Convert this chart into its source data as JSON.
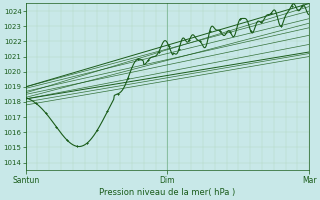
{
  "title": "",
  "xlabel": "Pression niveau de la mer( hPa )",
  "bg_color": "#c8e8e8",
  "grid_minor_color": "#b0d8c0",
  "grid_major_color": "#80b898",
  "line_color": "#1a5c1a",
  "ylim": [
    1013.5,
    1024.5
  ],
  "yticks": [
    1014,
    1015,
    1016,
    1017,
    1018,
    1019,
    1020,
    1021,
    1022,
    1023,
    1024
  ],
  "xlim": [
    0,
    192
  ],
  "xtick_positions": [
    0,
    96,
    192
  ],
  "xtick_labels": [
    "Santun",
    "Dim",
    "Mar"
  ]
}
